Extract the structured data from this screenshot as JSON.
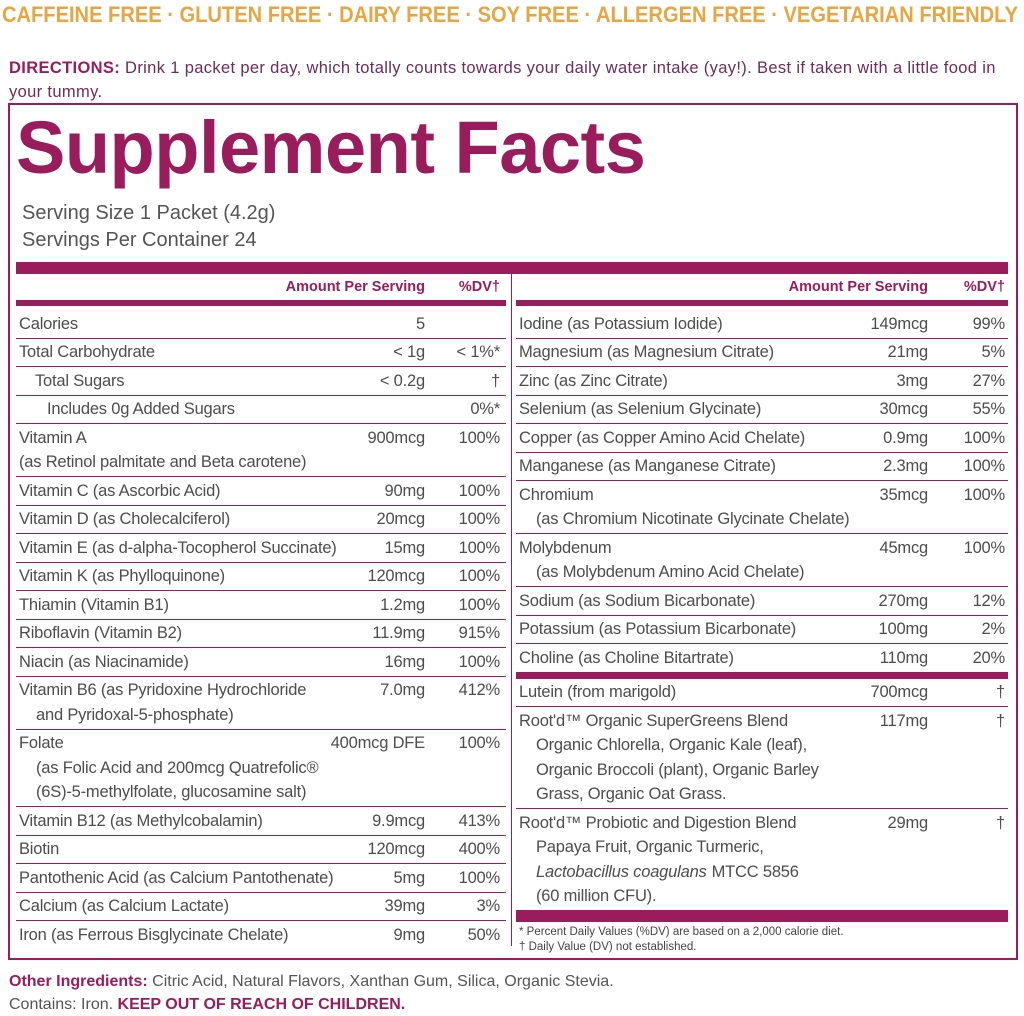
{
  "banner": "CAFFEINE FREE · GLUTEN FREE · DAIRY FREE · SOY FREE · ALLERGEN FREE · VEGETARIAN FRIENDLY",
  "directions": {
    "label": "DIRECTIONS:",
    "text": "Drink 1 packet per day, which totally counts towards your daily water intake (yay!). Best if taken with a little food in your tummy."
  },
  "facts": {
    "title": "Supplement Facts",
    "serving_size": "Serving Size 1 Packet (4.2g)",
    "servings_per_container": "Servings Per Container 24",
    "header": {
      "amount": "Amount Per Serving",
      "dv": "%DV†"
    },
    "left_rows": [
      {
        "name": "Calories",
        "amount": "5"
      },
      {
        "name": "Total Carbohydrate",
        "amount": "< 1g",
        "dv": "< 1%*"
      },
      {
        "name": "Total Sugars",
        "amount": "< 0.2g",
        "dv": "†"
      },
      {
        "name": "Includes 0g Added Sugars",
        "dv": "0%*"
      },
      {
        "name": "Vitamin A",
        "amount": "900mcg",
        "dv": "100%",
        "sub": [
          "(as Retinol palmitate and Beta carotene)"
        ]
      },
      {
        "name": "Vitamin C (as Ascorbic Acid)",
        "amount": "90mg",
        "dv": "100%"
      },
      {
        "name": "Vitamin D (as Cholecalciferol)",
        "amount": "20mcg",
        "dv": "100%"
      },
      {
        "name": "Vitamin E (as d-alpha-Tocopherol Succinate)",
        "amount": "15mg",
        "dv": "100%"
      },
      {
        "name": "Vitamin K (as Phylloquinone)",
        "amount": "120mcg",
        "dv": "100%"
      },
      {
        "name": "Thiamin (Vitamin B1)",
        "amount": "1.2mg",
        "dv": "100%"
      },
      {
        "name": "Riboflavin (Vitamin B2)",
        "amount": "11.9mg",
        "dv": "915%"
      },
      {
        "name": "Niacin (as Niacinamide)",
        "amount": "16mg",
        "dv": "100%"
      },
      {
        "name": "Vitamin B6 (as Pyridoxine Hydrochloride",
        "amount": "7.0mg",
        "dv": "412%",
        "sub": [
          "and Pyridoxal-5-phosphate)"
        ]
      },
      {
        "name": "Folate",
        "amount": "400mcg DFE",
        "dv": "100%",
        "sub": [
          "(as Folic Acid and 200mcg Quatrefolic®",
          "(6S)-5-methylfolate, glucosamine salt)"
        ]
      },
      {
        "name": "Vitamin B12 (as Methylcobalamin)",
        "amount": "9.9mcg",
        "dv": "413%"
      },
      {
        "name": "Biotin",
        "amount": "120mcg",
        "dv": "400%"
      },
      {
        "name": "Pantothenic Acid (as Calcium Pantothenate)",
        "amount": "5mg",
        "dv": "100%"
      },
      {
        "name": "Calcium (as Calcium Lactate)",
        "amount": "39mg",
        "dv": "3%"
      },
      {
        "name": "Iron (as Ferrous Bisglycinate Chelate)",
        "amount": "9mg",
        "dv": "50%"
      }
    ],
    "right_rows": [
      {
        "name": "Iodine (as Potassium Iodide)",
        "amount": "149mcg",
        "dv": "99%"
      },
      {
        "name": "Magnesium (as Magnesium Citrate)",
        "amount": "21mg",
        "dv": "5%"
      },
      {
        "name": "Zinc (as Zinc Citrate)",
        "amount": "3mg",
        "dv": "27%"
      },
      {
        "name": "Selenium (as Selenium Glycinate)",
        "amount": "30mcg",
        "dv": "55%"
      },
      {
        "name": "Copper (as Copper Amino Acid Chelate)",
        "amount": "0.9mg",
        "dv": "100%"
      },
      {
        "name": "Manganese (as Manganese Citrate)",
        "amount": "2.3mg",
        "dv": "100%"
      },
      {
        "name": "Chromium",
        "amount": "35mcg",
        "dv": "100%",
        "sub": [
          "(as Chromium Nicotinate Glycinate Chelate)"
        ]
      },
      {
        "name": "Molybdenum",
        "amount": "45mcg",
        "dv": "100%",
        "sub": [
          "(as Molybdenum Amino Acid Chelate)"
        ]
      },
      {
        "name": "Sodium (as Sodium Bicarbonate)",
        "amount": "270mg",
        "dv": "12%"
      },
      {
        "name": "Potassium (as Potassium Bicarbonate)",
        "amount": "100mg",
        "dv": "2%"
      },
      {
        "name": "Choline (as Choline Bitartrate)",
        "amount": "110mg",
        "dv": "20%"
      }
    ],
    "right_rows_2": [
      {
        "name": "Lutein (from marigold)",
        "amount": "700mcg",
        "dv": "†"
      },
      {
        "name": "Root'd™ Organic SuperGreens Blend",
        "amount": "117mg",
        "dv": "†",
        "sub": [
          "Organic Chlorella, Organic Kale (leaf),",
          "Organic Broccoli (plant), Organic Barley",
          "Grass, Organic Oat Grass."
        ]
      },
      {
        "name": "Root'd™ Probiotic and Digestion Blend",
        "amount": "29mg",
        "dv": "†",
        "sub": [
          "Papaya Fruit, Organic Turmeric,",
          {
            "em": "Lactobacillus coagulans",
            "text": "MTCC 5856"
          },
          "(60 million CFU)."
        ]
      }
    ],
    "footnotes": [
      "* Percent Daily Values (%DV) are based on a 2,000 calorie diet.",
      "† Daily Value (DV) not established."
    ]
  },
  "other_ingredients": {
    "label": "Other Ingredients:",
    "text": "Citric Acid, Natural Flavors, Xanthan Gum, Silica, Organic Stevia."
  },
  "contains": {
    "text": "Contains: Iron.",
    "warning": "KEEP OUT OF REACH OF CHILDREN."
  }
}
